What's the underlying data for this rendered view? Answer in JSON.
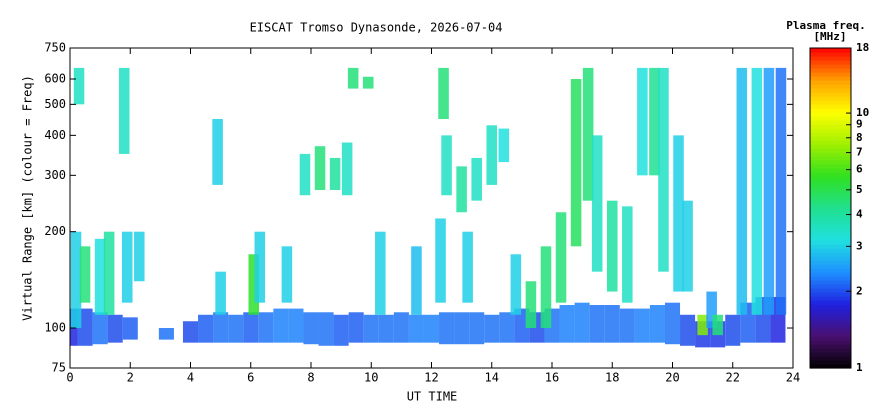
{
  "chart_data": {
    "type": "range",
    "title": "EISCAT Tromso Dynasonde, 2026-07-04",
    "xlabel": "UT TIME",
    "ylabel": "Virtual Range [km] (colour = Freq)",
    "colorbar_title": [
      "Plasma freq.",
      "[MHz]"
    ],
    "xlim": [
      0,
      24
    ],
    "xticks": [
      0,
      2,
      4,
      6,
      8,
      10,
      12,
      14,
      16,
      18,
      20,
      22,
      24
    ],
    "ylim": [
      75,
      750
    ],
    "yticks": [
      75,
      100,
      200,
      300,
      400,
      500,
      600,
      750
    ],
    "ylog": true,
    "clim": [
      1,
      18
    ],
    "cticks": [
      1,
      2,
      3,
      4,
      5,
      6,
      7,
      8,
      9,
      10,
      18
    ],
    "clog": true,
    "colorscale": [
      "#000000",
      "#4a1070",
      "#2020e0",
      "#1e90ff",
      "#20e0e0",
      "#20e090",
      "#30e020",
      "#a0f000",
      "#ffff00",
      "#ffa000",
      "#ff0000"
    ],
    "series": [
      {
        "x": [
          0,
          0.5,
          1,
          1.5,
          2,
          3.2,
          4,
          4.5,
          5,
          5.5,
          6,
          6.5,
          7,
          7.5,
          8,
          8.5,
          9,
          9.5,
          10,
          10.5,
          11,
          11.5,
          12,
          12.5,
          13,
          13.5,
          14,
          14.5,
          15,
          15.5,
          16,
          16.5,
          17,
          17.5,
          18,
          18.5,
          19,
          19.5,
          20,
          20.5,
          21,
          21.5,
          22,
          22.5,
          23,
          23.5
        ],
        "lo": [
          88,
          88,
          89,
          90,
          92,
          92,
          90,
          90,
          90,
          90,
          90,
          90,
          90,
          90,
          89,
          88,
          88,
          90,
          90,
          90,
          90,
          90,
          90,
          89,
          89,
          89,
          90,
          90,
          90,
          90,
          90,
          90,
          90,
          90,
          90,
          90,
          90,
          90,
          89,
          88,
          87,
          87,
          88,
          90,
          90,
          90
        ],
        "hi": [
          115,
          115,
          112,
          110,
          108,
          100,
          105,
          110,
          112,
          110,
          112,
          112,
          115,
          115,
          112,
          112,
          110,
          112,
          110,
          110,
          112,
          110,
          110,
          112,
          112,
          112,
          110,
          112,
          115,
          112,
          115,
          118,
          120,
          118,
          118,
          115,
          115,
          118,
          120,
          110,
          105,
          105,
          110,
          120,
          125,
          125
        ],
        "f": [
          1.8,
          2,
          2.2,
          2,
          2.1,
          2.2,
          2,
          2.1,
          2.2,
          2.2,
          2.1,
          2.2,
          2.3,
          2.3,
          2.2,
          2.2,
          2.1,
          2.1,
          2.2,
          2.2,
          2.2,
          2.3,
          2.3,
          2.2,
          2.2,
          2.2,
          2.2,
          2.2,
          2.1,
          2,
          2.2,
          2.3,
          2.3,
          2.2,
          2.2,
          2.2,
          2.3,
          2.3,
          2.2,
          2,
          1.9,
          1.9,
          2,
          2.1,
          2,
          1.8
        ]
      },
      {
        "x": [
          0.2,
          0.3,
          0.5,
          1.0,
          1.3,
          1.8,
          1.9,
          2.3,
          4.9,
          5.0,
          6.1,
          6.3,
          7.2,
          7.8,
          8.3,
          8.8,
          9.2,
          9.4,
          9.9,
          10.3,
          11.5,
          12.3,
          12.4,
          12.5,
          13.0,
          13.2,
          13.5,
          14.0,
          14.4,
          14.8,
          15.3,
          15.8,
          16.3,
          16.8,
          17.2,
          17.5,
          18.0,
          18.5,
          19.0,
          19.4,
          19.7,
          20.2,
          20.5,
          21.0,
          21.3,
          21.5,
          22.3,
          22.8,
          23.2,
          23.6
        ],
        "lo": [
          100,
          500,
          120,
          110,
          110,
          350,
          120,
          140,
          280,
          110,
          110,
          120,
          120,
          260,
          270,
          270,
          260,
          560,
          560,
          110,
          110,
          120,
          450,
          260,
          230,
          120,
          250,
          280,
          330,
          110,
          100,
          100,
          120,
          180,
          250,
          150,
          130,
          120,
          300,
          300,
          150,
          130,
          130,
          95,
          100,
          95,
          110,
          110,
          110,
          110
        ],
        "hi": [
          200,
          650,
          180,
          190,
          200,
          650,
          200,
          200,
          450,
          150,
          170,
          200,
          180,
          350,
          370,
          340,
          380,
          650,
          610,
          200,
          180,
          220,
          650,
          400,
          320,
          200,
          340,
          430,
          420,
          170,
          140,
          180,
          230,
          600,
          650,
          400,
          250,
          240,
          650,
          650,
          650,
          400,
          250,
          110,
          130,
          110,
          650,
          650,
          650,
          650
        ],
        "f": [
          3,
          3.5,
          4.5,
          3.2,
          4,
          3.5,
          3,
          3,
          3,
          3,
          5.5,
          3,
          3,
          3.5,
          4.5,
          4,
          3.5,
          4.5,
          4.5,
          3,
          2.8,
          3,
          4.5,
          3.5,
          4,
          3,
          3.5,
          3.5,
          3.2,
          3,
          4.5,
          4.5,
          4.5,
          4.8,
          4.5,
          3.5,
          4,
          3.5,
          3.2,
          4.2,
          3.5,
          3,
          3,
          7,
          2.5,
          4.5,
          2.8,
          3.2,
          2.5,
          2.2
        ]
      }
    ]
  }
}
